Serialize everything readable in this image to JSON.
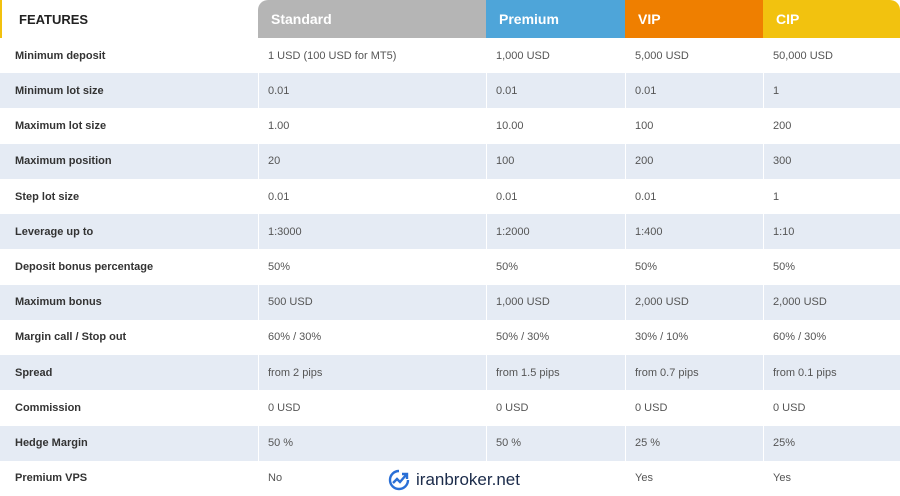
{
  "table": {
    "header": [
      "FEATURES",
      "Standard",
      "Premium",
      "VIP",
      "CIP"
    ],
    "rows": [
      [
        "Minimum deposit",
        "1 USD (100 USD for MT5)",
        "1,000 USD",
        "5,000 USD",
        "50,000 USD"
      ],
      [
        "Minimum lot size",
        "0.01",
        "0.01",
        "0.01",
        "1"
      ],
      [
        "Maximum lot size",
        "1.00",
        "10.00",
        "100",
        "200"
      ],
      [
        "Maximum position",
        "20",
        "100",
        "200",
        "300"
      ],
      [
        "Step lot size",
        "0.01",
        "0.01",
        "0.01",
        "1"
      ],
      [
        "Leverage up to",
        "1:3000",
        "1:2000",
        "1:400",
        "1:10"
      ],
      [
        "Deposit bonus percentage",
        "50%",
        "50%",
        "50%",
        "50%"
      ],
      [
        "Maximum bonus",
        "500 USD",
        "1,000 USD",
        "2,000 USD",
        "2,000 USD"
      ],
      [
        "Margin call / Stop out",
        "60% / 30%",
        "50% / 30%",
        "30% / 10%",
        "60% / 30%"
      ],
      [
        "Spread",
        "from 2 pips",
        "from 1.5 pips",
        "from 0.7 pips",
        "from 0.1 pips"
      ],
      [
        "Commission",
        "0 USD",
        "0 USD",
        "0 USD",
        "0 USD"
      ],
      [
        "Hedge Margin",
        "50 %",
        "50 %",
        "25 %",
        "25%"
      ],
      [
        "Premium VPS",
        "No",
        null,
        "Yes",
        "Yes"
      ]
    ]
  },
  "watermark": "iranbroker.net"
}
